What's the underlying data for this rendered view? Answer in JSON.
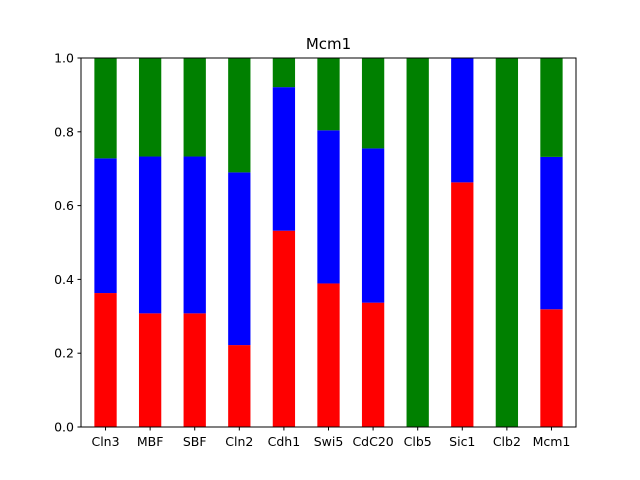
{
  "chart_data": {
    "type": "bar",
    "stacked": true,
    "normalized": true,
    "title": "Mcm1",
    "xlabel": "",
    "ylabel": "",
    "ylim": [
      0,
      1.0
    ],
    "yticks": [
      0.0,
      0.2,
      0.4,
      0.6,
      0.8,
      1.0
    ],
    "ytick_labels": [
      "0.0",
      "0.2",
      "0.4",
      "0.6",
      "0.8",
      "1.0"
    ],
    "grid": false,
    "legend": false,
    "categories": [
      "Cln3",
      "MBF",
      "SBF",
      "Cln2",
      "Cdh1",
      "Swi5",
      "CdC20",
      "Clb5",
      "Sic1",
      "Clb2",
      "Mcm1"
    ],
    "series": [
      {
        "color": "#ff0000",
        "values": [
          0.363,
          0.308,
          0.308,
          0.222,
          0.532,
          0.389,
          0.337,
          0.0,
          0.663,
          0.0,
          0.319
        ]
      },
      {
        "color": "#0000ff",
        "values": [
          0.365,
          0.425,
          0.425,
          0.468,
          0.389,
          0.415,
          0.418,
          0.0,
          0.337,
          0.0,
          0.413
        ]
      },
      {
        "color": "#008000",
        "values": [
          0.272,
          0.267,
          0.267,
          0.31,
          0.079,
          0.196,
          0.245,
          1.0,
          0.0,
          1.0,
          0.268
        ]
      }
    ]
  }
}
